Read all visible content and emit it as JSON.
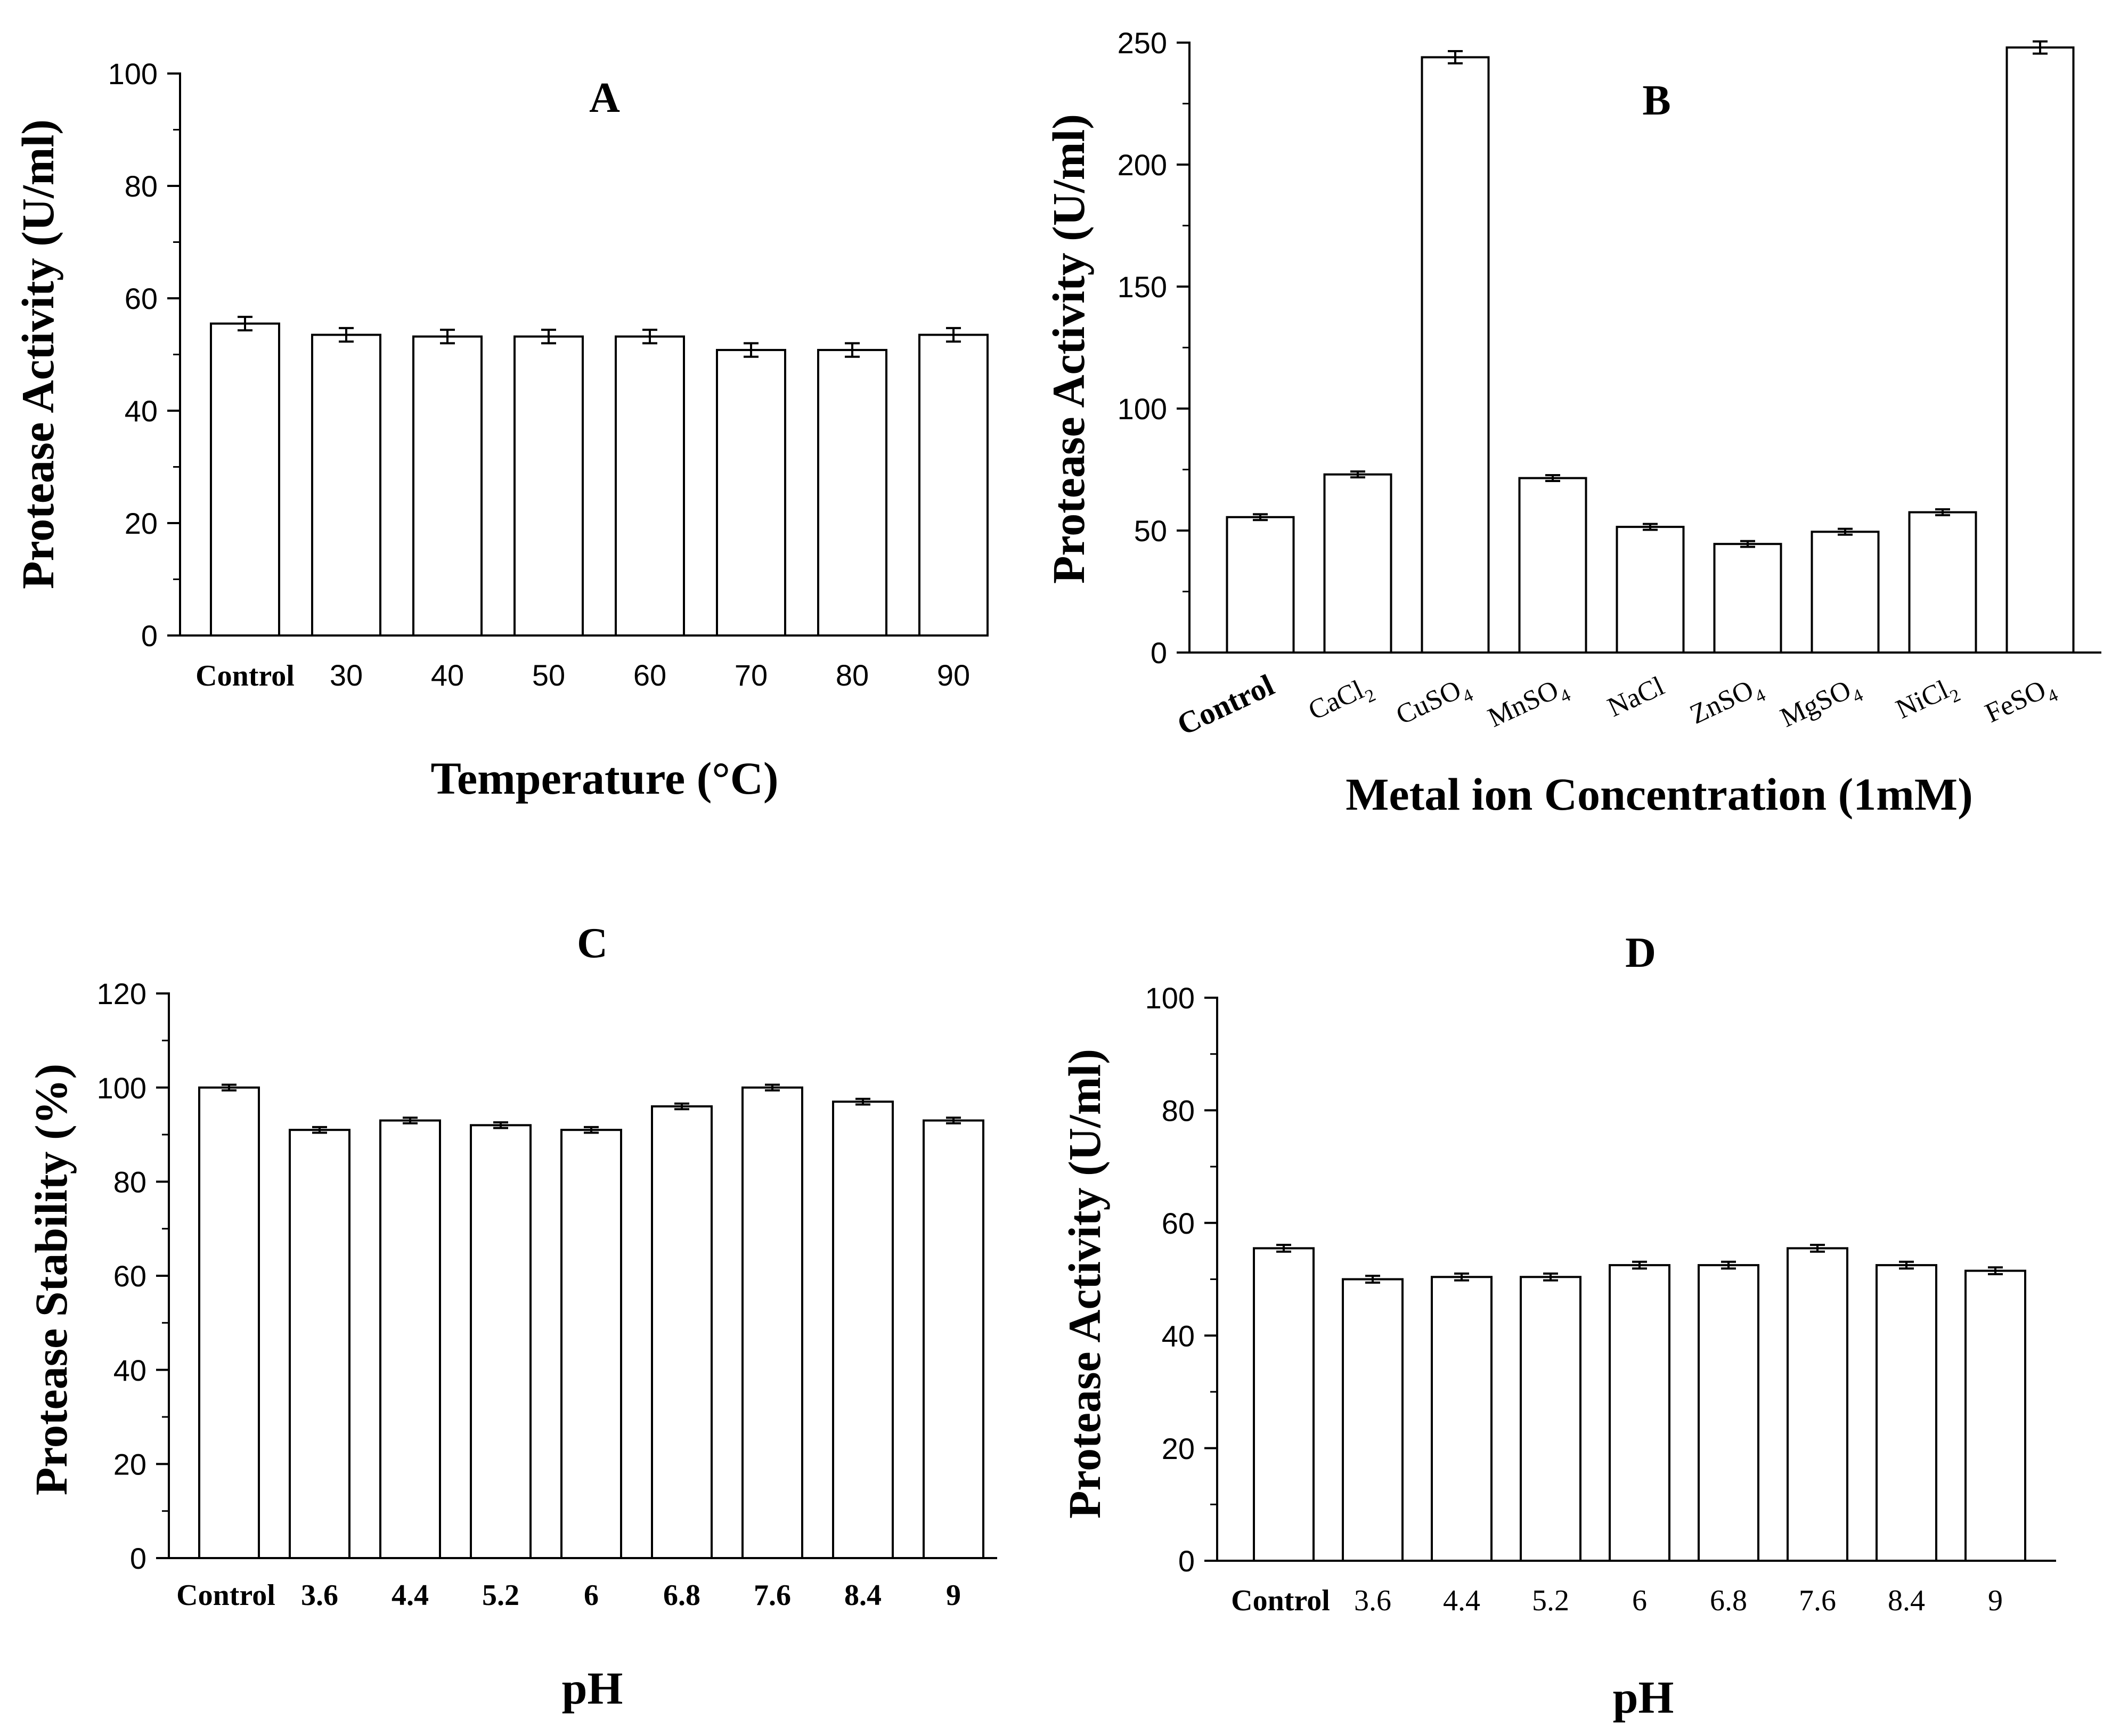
{
  "chart_data": [
    {
      "type": "bar",
      "panel": "A",
      "title": "A",
      "xlabel": "Temperature (°C)",
      "ylabel": "Protease Activity (U/ml)",
      "categories": [
        "Control",
        "30",
        "40",
        "50",
        "60",
        "70",
        "80",
        "90"
      ],
      "values": [
        55.5,
        53.5,
        53.2,
        53.2,
        53.2,
        50.8,
        50.8,
        53.5
      ],
      "errors": [
        1.2,
        1.2,
        1.2,
        1.2,
        1.2,
        1.2,
        1.2,
        1.2
      ],
      "ylim": [
        0,
        100
      ],
      "yticks": [
        "0",
        "20",
        "40",
        "60",
        "80",
        "100"
      ],
      "grid": false
    },
    {
      "type": "bar",
      "panel": "B",
      "title": "B",
      "xlabel": "Metal ion Concentration (1mM)",
      "ylabel": "Protease Activity (U/ml)",
      "categories": [
        "Control",
        "CaCl2",
        "CuSO4",
        "MnSO4",
        "NaCl",
        "ZnSO4",
        "MgSO4",
        "NiCl2",
        "FeSO4"
      ],
      "category_parts": [
        [
          "Control",
          ""
        ],
        [
          "CaCl",
          "2"
        ],
        [
          "CuSO",
          "4"
        ],
        [
          "MnSO",
          "4"
        ],
        [
          "NaCl",
          ""
        ],
        [
          "ZnSO",
          "4"
        ],
        [
          "MgSO",
          "4"
        ],
        [
          "NiCl",
          "2"
        ],
        [
          "FeSO",
          "4"
        ]
      ],
      "values": [
        55.5,
        73,
        244,
        71.5,
        51.5,
        44.5,
        49.5,
        57.5,
        248
      ],
      "errors": [
        1.2,
        1.2,
        2.5,
        1.2,
        1.2,
        1.2,
        1.2,
        1.2,
        2.5
      ],
      "ylim": [
        0,
        250
      ],
      "yticks": [
        "0",
        "50",
        "100",
        "150",
        "200",
        "250"
      ],
      "grid": false
    },
    {
      "type": "bar",
      "panel": "C",
      "title": "C",
      "xlabel": "pH",
      "ylabel": "Protease Stability (%)",
      "categories": [
        "Control",
        "3.6",
        "4.4",
        "5.2",
        "6",
        "6.8",
        "7.6",
        "8.4",
        "9"
      ],
      "values": [
        100,
        91,
        93,
        92,
        91,
        96,
        100,
        97,
        93
      ],
      "errors": [
        0.6,
        0.6,
        0.6,
        0.6,
        0.6,
        0.6,
        0.6,
        0.6,
        0.6
      ],
      "ylim": [
        0,
        120
      ],
      "yticks": [
        "0",
        "20",
        "40",
        "60",
        "80",
        "100",
        "120"
      ],
      "grid": false
    },
    {
      "type": "bar",
      "panel": "D",
      "title": "D",
      "xlabel": "pH",
      "ylabel": "Protease Activity (U/ml)",
      "categories": [
        "Control",
        "3.6",
        "4.4",
        "5.2",
        "6",
        "6.8",
        "7.6",
        "8.4",
        "9"
      ],
      "values": [
        55.5,
        50,
        50.4,
        50.4,
        52.5,
        52.5,
        55.5,
        52.5,
        51.5
      ],
      "errors": [
        0.6,
        0.6,
        0.6,
        0.6,
        0.6,
        0.6,
        0.6,
        0.6,
        0.6
      ],
      "ylim": [
        0,
        100
      ],
      "yticks": [
        "0",
        "20",
        "40",
        "60",
        "80",
        "100"
      ],
      "grid": false
    }
  ],
  "colors": {
    "bar_fill": "#ffffff",
    "bar_stroke": "#000000",
    "axis": "#000000"
  }
}
